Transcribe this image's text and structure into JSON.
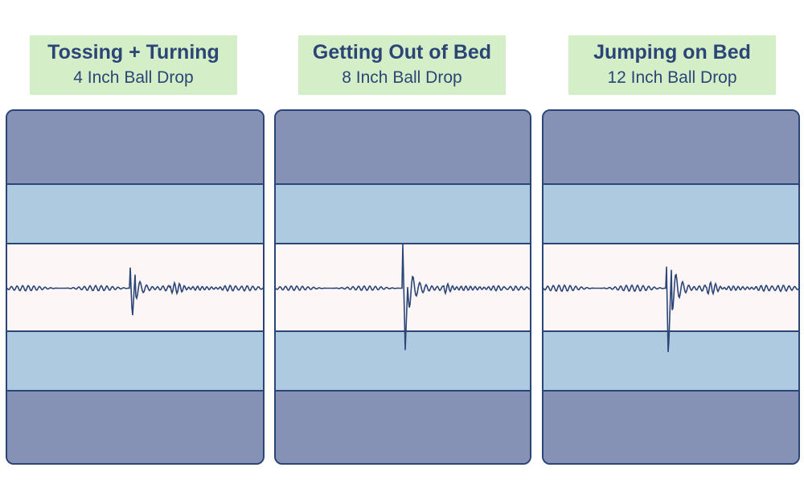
{
  "panels": [
    {
      "title": "Tossing + Turning",
      "subtitle": "4 Inch Ball Drop"
    },
    {
      "title": "Getting Out of Bed",
      "subtitle": "8 Inch Ball Drop"
    },
    {
      "title": "Jumping on Bed",
      "subtitle": "12 Inch Ball Drop"
    }
  ],
  "colors": {
    "label_bg": "#d4efc7",
    "text": "#2c4577",
    "dark_band": "#8592b5",
    "light_band": "#adcae0",
    "center_band": "#fcf6f6",
    "waveform": "#2c4577"
  },
  "waveforms": [
    {
      "spike_position": 0.48,
      "peak_up": 0.63,
      "peak_down": 0.72,
      "ripple": 0.06
    },
    {
      "spike_position": 0.5,
      "peak_up": 1.0,
      "peak_down": 1.4,
      "ripple": 0.05
    },
    {
      "spike_position": 0.48,
      "peak_up": 1.3,
      "peak_down": 1.6,
      "ripple": 0.07
    }
  ]
}
